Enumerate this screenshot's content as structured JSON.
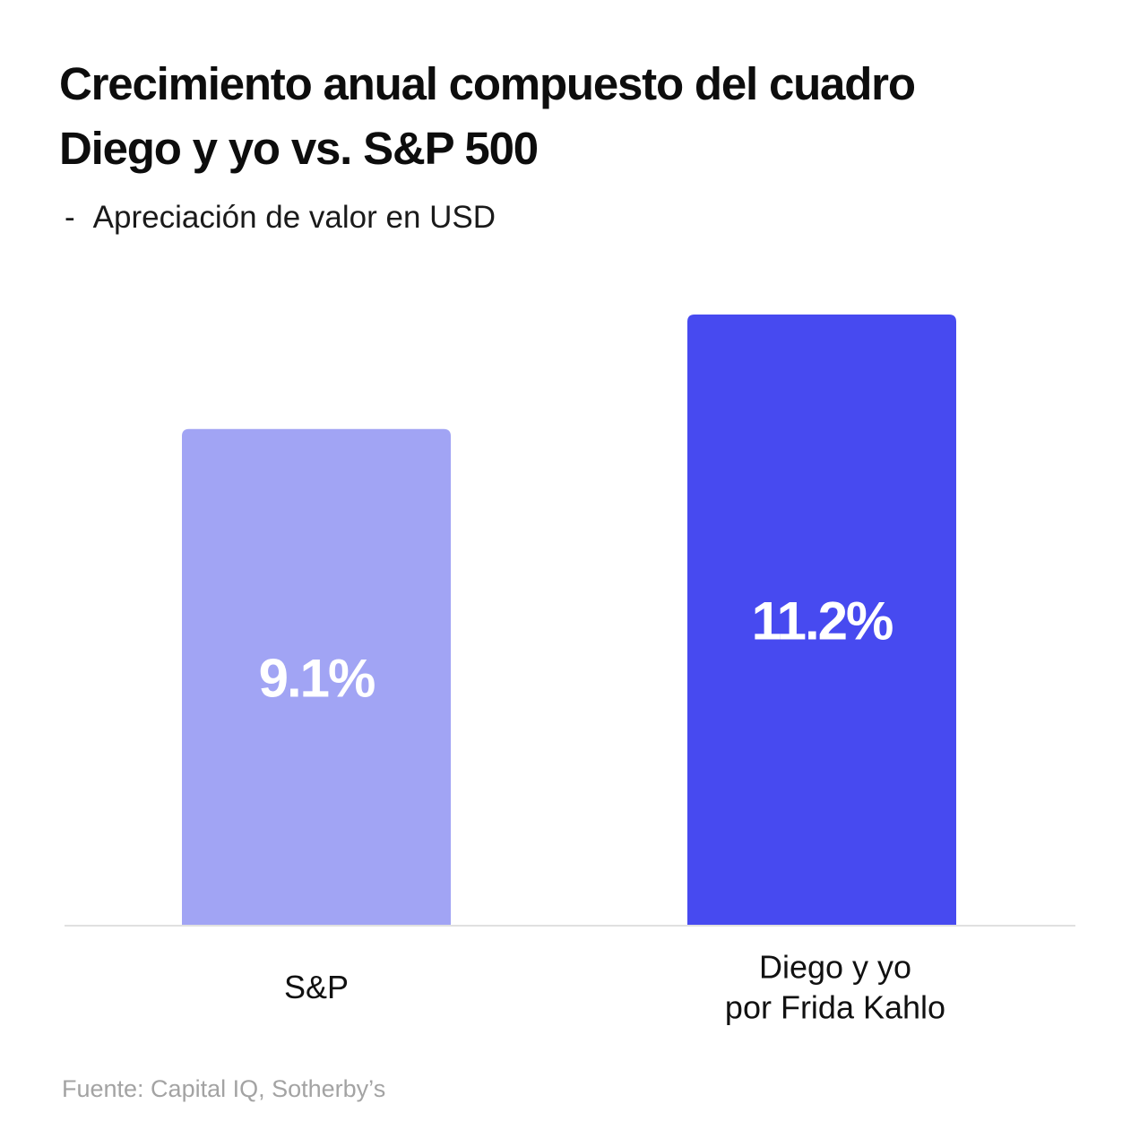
{
  "chart_data": {
    "type": "bar",
    "title": "Crecimiento anual compuesto del cuadro Diego y yo vs. S&P 500",
    "title_lines": [
      "Crecimiento anual compuesto del cuadro",
      "Diego y yo vs. S&P 500"
    ],
    "subtitle_dash": "-",
    "subtitle": "Apreciación de valor en USD",
    "categories": [
      "S&P",
      "Diego y yo por Frida Kahlo"
    ],
    "category_lines": [
      [
        "S&P"
      ],
      [
        "Diego y yo",
        "por Frida Kahlo"
      ]
    ],
    "values": [
      9.1,
      11.2
    ],
    "value_labels": [
      "9.1%",
      "11.2%"
    ],
    "unit": "%",
    "ylim": [
      0,
      11.2
    ],
    "xlabel": "",
    "ylabel": "",
    "grid": false,
    "legend": "none",
    "colors": [
      "#a1a4f4",
      "#474af0"
    ],
    "baseline_color": "#e0e0e0",
    "label_color": "#ffffff",
    "source": "Fuente: Capital IQ, Sotherby’s"
  }
}
